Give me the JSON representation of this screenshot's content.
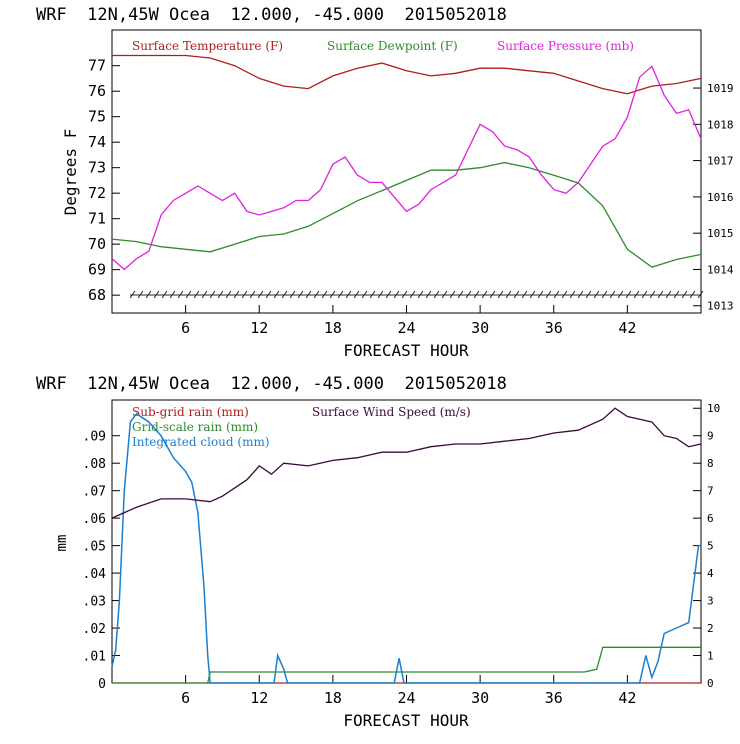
{
  "colors": {
    "temperature": "#b01c1c",
    "dewpoint": "#2e8b2e",
    "pressure": "#e020e0",
    "wind": "#3a0a3a",
    "cloud": "#1a7fd0",
    "grid_rain": "#2e8b2e",
    "subgrid_rain": "#b01c1c"
  },
  "chart_data": [
    {
      "type": "line",
      "title": "WRF  12N,45W Ocea  12.000, -45.000  2015052018",
      "xlabel": "FORECAST HOUR",
      "ylabel": "Degrees F",
      "y2label": "",
      "xlim": [
        0,
        48
      ],
      "ylim": [
        67.3,
        78.4
      ],
      "y2lim": [
        1012.8,
        1020.6
      ],
      "grid": false,
      "legend_position": "top",
      "xticks": [
        "6",
        "12",
        "18",
        "24",
        "30",
        "36",
        "42"
      ],
      "yticks": [
        "68",
        "69",
        "70",
        "71",
        "72",
        "73",
        "74",
        "75",
        "76",
        "77"
      ],
      "y2ticks": [
        "1013",
        "1014",
        "1015",
        "1016",
        "1017",
        "1018",
        "1019"
      ],
      "series": [
        {
          "name": "Surface Temperature (F)",
          "axis": "left",
          "x": [
            0,
            2,
            4,
            6,
            8,
            10,
            12,
            14,
            16,
            18,
            20,
            22,
            24,
            26,
            28,
            30,
            32,
            34,
            36,
            38,
            40,
            42,
            44,
            46,
            48
          ],
          "y": [
            77.4,
            77.4,
            77.4,
            77.4,
            77.3,
            77.0,
            76.5,
            76.2,
            76.1,
            76.6,
            76.9,
            77.1,
            76.8,
            76.6,
            76.7,
            76.9,
            76.9,
            76.8,
            76.7,
            76.4,
            76.1,
            75.9,
            76.2,
            76.3,
            76.5
          ]
        },
        {
          "name": "Surface Dewpoint (F)",
          "axis": "left",
          "x": [
            0,
            2,
            4,
            6,
            8,
            10,
            12,
            14,
            16,
            18,
            20,
            22,
            24,
            26,
            28,
            30,
            32,
            34,
            36,
            38,
            40,
            42,
            44,
            46,
            48
          ],
          "y": [
            70.2,
            70.1,
            69.9,
            69.8,
            69.7,
            70.0,
            70.3,
            70.4,
            70.7,
            71.2,
            71.7,
            72.1,
            72.5,
            72.9,
            72.9,
            73.0,
            73.2,
            73.0,
            72.7,
            72.4,
            71.5,
            69.8,
            69.1,
            69.4,
            69.6
          ]
        },
        {
          "name": "Surface Pressure (mb)",
          "axis": "right",
          "x": [
            0,
            1,
            2,
            3,
            4,
            5,
            6,
            7,
            8,
            9,
            10,
            11,
            12,
            13,
            14,
            15,
            16,
            17,
            18,
            19,
            20,
            21,
            22,
            23,
            24,
            25,
            26,
            27,
            28,
            29,
            30,
            31,
            32,
            33,
            34,
            35,
            36,
            37,
            38,
            39,
            40,
            41,
            42,
            43,
            44,
            45,
            46,
            47,
            48
          ],
          "y": [
            1014.3,
            1014.0,
            1014.3,
            1014.5,
            1015.5,
            1015.9,
            1016.1,
            1016.3,
            1016.1,
            1015.9,
            1016.1,
            1015.6,
            1015.5,
            1015.6,
            1015.7,
            1015.9,
            1015.9,
            1016.2,
            1016.9,
            1017.1,
            1016.6,
            1016.4,
            1016.4,
            1016.0,
            1015.6,
            1015.8,
            1016.2,
            1016.4,
            1016.6,
            1017.3,
            1018.0,
            1017.8,
            1017.4,
            1017.3,
            1017.1,
            1016.6,
            1016.2,
            1016.1,
            1016.4,
            1016.9,
            1017.4,
            1017.6,
            1018.2,
            1019.3,
            1019.6,
            1018.8,
            1018.3,
            1018.4,
            1017.6
          ]
        }
      ]
    },
    {
      "type": "line",
      "title": "WRF  12N,45W Ocea  12.000, -45.000  2015052018",
      "xlabel": "FORECAST HOUR",
      "ylabel": "mm",
      "y2label": "",
      "xlim": [
        0,
        48
      ],
      "ylim": [
        0,
        0.103
      ],
      "y2lim": [
        0,
        10.3
      ],
      "grid": false,
      "legend_position": "top",
      "xticks": [
        "6",
        "12",
        "18",
        "24",
        "30",
        "36",
        "42"
      ],
      "yticks": [
        "0",
        ".01",
        ".02",
        ".03",
        ".04",
        ".05",
        ".06",
        ".07",
        ".08",
        ".09"
      ],
      "y2ticks": [
        "0",
        "1",
        "2",
        "3",
        "4",
        "5",
        "6",
        "7",
        "8",
        "9",
        "10"
      ],
      "series": [
        {
          "name": "Sub-grid rain (mm)",
          "axis": "left",
          "x": [
            0,
            48
          ],
          "y": [
            0,
            0
          ]
        },
        {
          "name": "Grid-scale rain (mm)",
          "axis": "left",
          "x": [
            0,
            7.8,
            8.0,
            38.5,
            39.5,
            40,
            48
          ],
          "y": [
            0,
            0,
            0.004,
            0.004,
            0.005,
            0.013,
            0.013
          ]
        },
        {
          "name": "Integrated cloud (mm)",
          "axis": "left",
          "x": [
            0,
            0.3,
            0.6,
            1,
            1.5,
            2,
            3,
            4,
            5,
            6,
            6.5,
            7,
            7.5,
            7.8,
            8.0,
            13.2,
            13.5,
            14,
            14.3,
            23.0,
            23.4,
            23.8,
            43.0,
            43.5,
            44,
            44.5,
            45,
            46,
            47,
            47.8,
            48
          ],
          "y": [
            0.006,
            0.012,
            0.03,
            0.07,
            0.095,
            0.098,
            0.095,
            0.09,
            0.082,
            0.077,
            0.073,
            0.062,
            0.035,
            0.01,
            0,
            0,
            0.01,
            0.005,
            0,
            0,
            0.009,
            0,
            0,
            0.01,
            0.002,
            0.008,
            0.018,
            0.02,
            0.022,
            0.05,
            0.05
          ]
        },
        {
          "name": "Surface Wind Speed (m/s)",
          "axis": "right",
          "x": [
            0,
            2,
            4,
            6,
            8,
            9,
            10,
            11,
            12,
            13,
            14,
            16,
            18,
            20,
            22,
            24,
            26,
            28,
            30,
            32,
            34,
            36,
            38,
            40,
            41,
            42,
            43,
            44,
            45,
            46,
            47,
            48
          ],
          "y": [
            6.0,
            6.4,
            6.7,
            6.7,
            6.6,
            6.8,
            7.1,
            7.4,
            7.9,
            7.6,
            8.0,
            7.9,
            8.1,
            8.2,
            8.4,
            8.4,
            8.6,
            8.7,
            8.7,
            8.8,
            8.9,
            9.1,
            9.2,
            9.6,
            10.0,
            9.7,
            9.6,
            9.5,
            9.0,
            8.9,
            8.6,
            8.7
          ]
        }
      ]
    }
  ]
}
